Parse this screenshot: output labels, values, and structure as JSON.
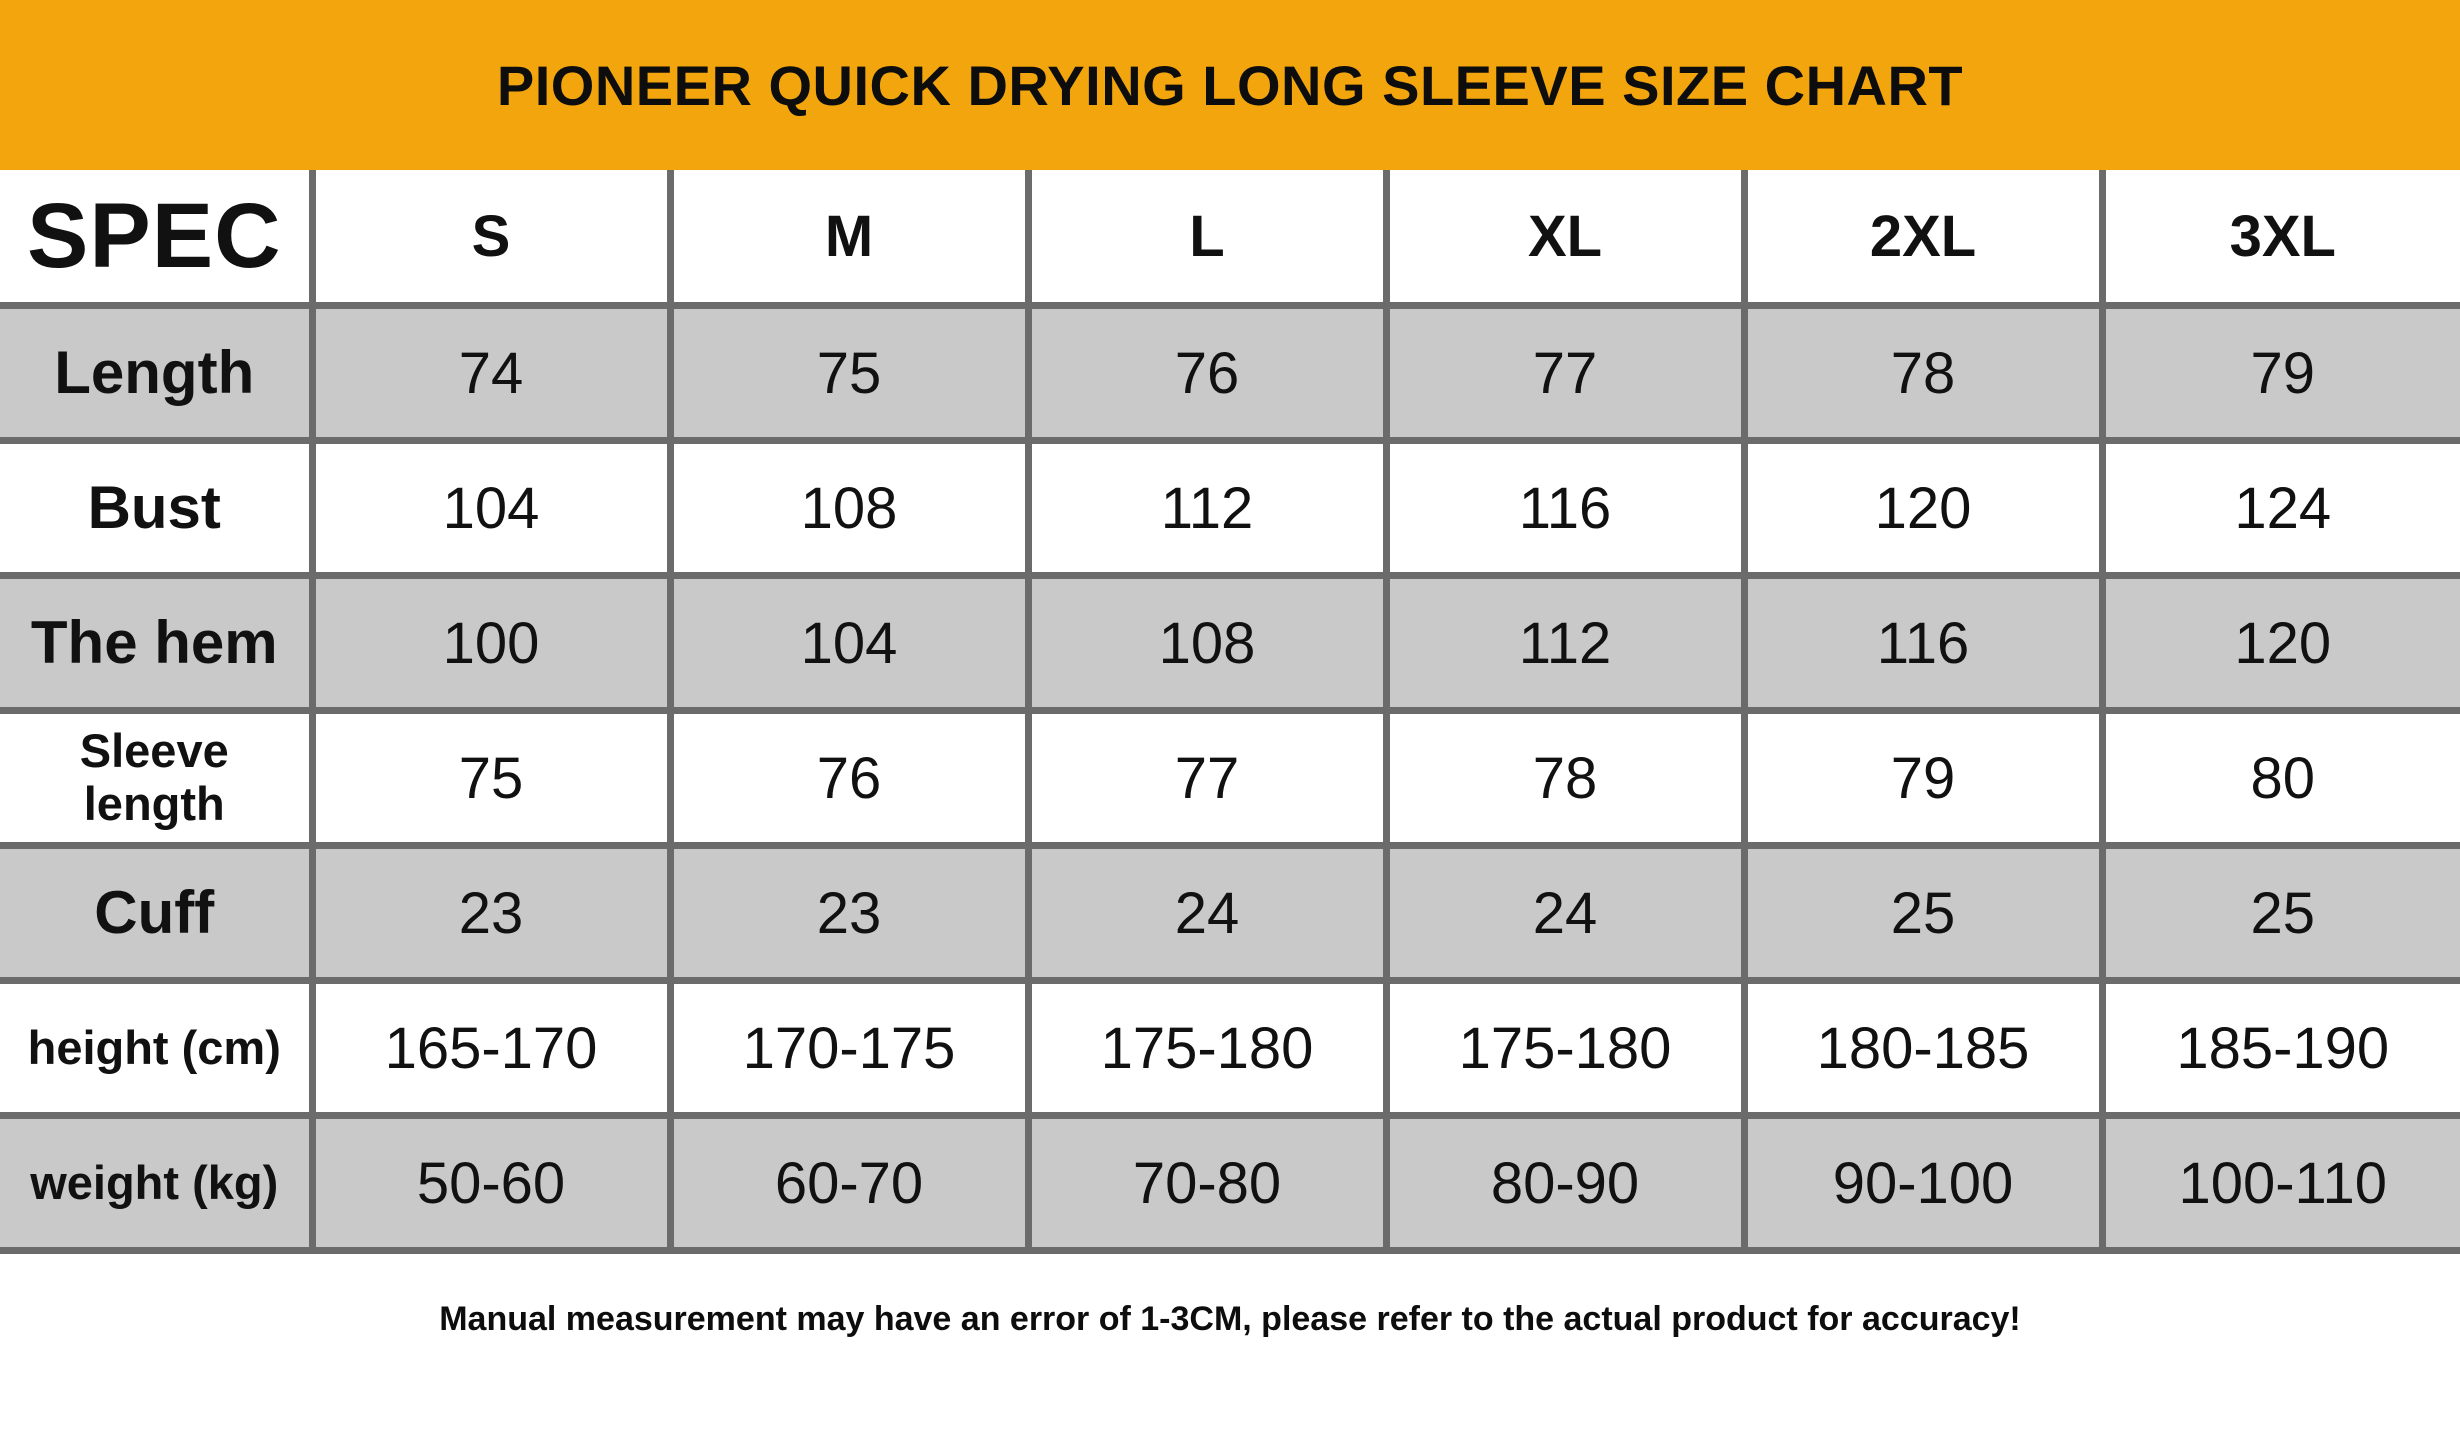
{
  "title": "PIONEER QUICK DRYING LONG SLEEVE SIZE CHART",
  "table": {
    "spec_label": "SPEC",
    "sizes": [
      "S",
      "M",
      "L",
      "XL",
      "2XL",
      "3XL"
    ],
    "rows": [
      {
        "label": "Length",
        "values": [
          "74",
          "75",
          "76",
          "77",
          "78",
          "79"
        ]
      },
      {
        "label": "Bust",
        "values": [
          "104",
          "108",
          "112",
          "116",
          "120",
          "124"
        ]
      },
      {
        "label": "The hem",
        "values": [
          "100",
          "104",
          "108",
          "112",
          "116",
          "120"
        ]
      },
      {
        "label": "Sleeve length",
        "values": [
          "75",
          "76",
          "77",
          "78",
          "79",
          "80"
        ]
      },
      {
        "label": "Cuff",
        "values": [
          "23",
          "23",
          "24",
          "24",
          "25",
          "25"
        ]
      },
      {
        "label": "height (cm)",
        "values": [
          "165-170",
          "170-175",
          "175-180",
          "175-180",
          "180-185",
          "185-190"
        ]
      },
      {
        "label": "weight (kg)",
        "values": [
          "50-60",
          "60-70",
          "70-80",
          "80-90",
          "90-100",
          "100-110"
        ]
      }
    ]
  },
  "footer_note": "Manual measurement may have an error of 1-3CM, please refer to the actual product for accuracy!",
  "colors": {
    "accent_orange": "#F2A50C",
    "row_gray": "#C9C9C9",
    "border_gray": "#6B6B6B",
    "text_black": "#111111"
  },
  "chart_data": {
    "type": "table",
    "title": "PIONEER QUICK DRYING LONG SLEEVE SIZE CHART",
    "columns": [
      "SPEC",
      "S",
      "M",
      "L",
      "XL",
      "2XL",
      "3XL"
    ],
    "rows": [
      [
        "Length",
        "74",
        "75",
        "76",
        "77",
        "78",
        "79"
      ],
      [
        "Bust",
        "104",
        "108",
        "112",
        "116",
        "120",
        "124"
      ],
      [
        "The hem",
        "100",
        "104",
        "108",
        "112",
        "116",
        "120"
      ],
      [
        "Sleeve length",
        "75",
        "76",
        "77",
        "78",
        "79",
        "80"
      ],
      [
        "Cuff",
        "23",
        "23",
        "24",
        "24",
        "25",
        "25"
      ],
      [
        "height (cm)",
        "165-170",
        "170-175",
        "175-180",
        "175-180",
        "180-185",
        "185-190"
      ],
      [
        "weight (kg)",
        "50-60",
        "60-70",
        "70-80",
        "80-90",
        "90-100",
        "100-110"
      ]
    ],
    "note": "Manual measurement may have an error of 1-3CM, please refer to the actual product for accuracy!"
  }
}
